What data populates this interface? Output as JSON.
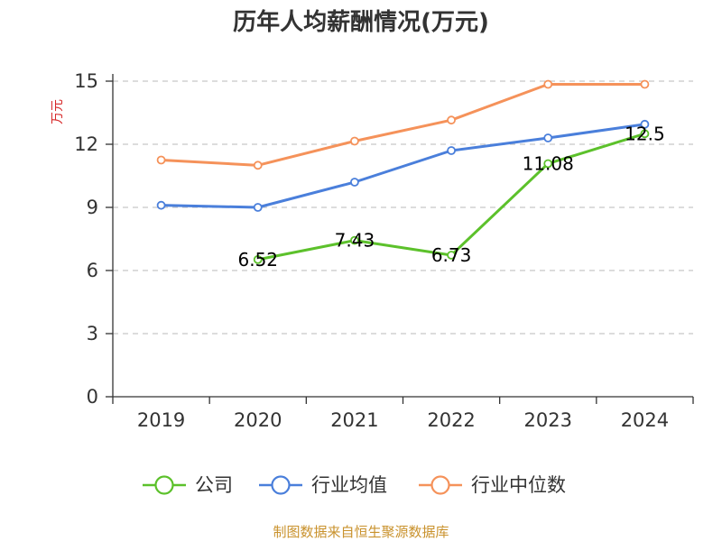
{
  "chart_data": {
    "type": "line",
    "title": "历年人均薪酬情况(万元)",
    "ylabel": "万元",
    "ylim": [
      0,
      15
    ],
    "yticks": [
      0,
      3,
      6,
      9,
      12,
      15
    ],
    "categories": [
      "2019",
      "2020",
      "2021",
      "2022",
      "2023",
      "2024"
    ],
    "grid": true,
    "legend_position": "bottom",
    "series": [
      {
        "name": "公司",
        "color": "#5cc12b",
        "values": [
          null,
          6.52,
          7.43,
          6.73,
          11.08,
          12.5
        ],
        "labels": [
          "",
          "6.52",
          "7.43",
          "6.73",
          "11.08",
          "12.5"
        ]
      },
      {
        "name": "行业均值",
        "color": "#4a7fdb",
        "values": [
          9.1,
          9.0,
          10.2,
          11.7,
          12.3,
          12.95
        ],
        "labels": [
          "",
          "",
          "",
          "",
          "",
          ""
        ]
      },
      {
        "name": "行业中位数",
        "color": "#f5925a",
        "values": [
          11.25,
          11.0,
          12.15,
          13.15,
          14.85,
          14.85
        ],
        "labels": [
          "",
          "",
          "",
          "",
          "",
          ""
        ]
      }
    ]
  },
  "source_text": "制图数据来自恒生聚源数据库",
  "colors": {
    "ylabel": "#d62728",
    "source": "#c9922d",
    "grid": "#c8c8c8",
    "axis": "#333333"
  }
}
